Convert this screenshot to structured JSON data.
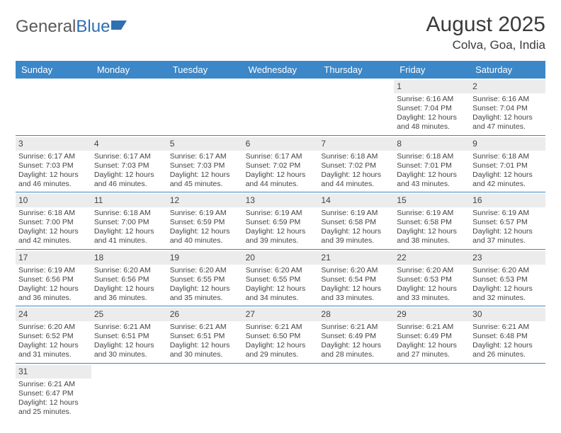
{
  "logo": {
    "part1": "General",
    "part2": "Blue"
  },
  "title": "August 2025",
  "location": "Colva, Goa, India",
  "colors": {
    "header_bg": "#3b87c8",
    "header_text": "#ffffff",
    "daynum_bg": "#ececec",
    "border": "#3b87c8",
    "text": "#444444",
    "logo_gray": "#5a5a5a",
    "logo_blue": "#2f6fb3",
    "flag_blue": "#2f6fb3"
  },
  "day_names": [
    "Sunday",
    "Monday",
    "Tuesday",
    "Wednesday",
    "Thursday",
    "Friday",
    "Saturday"
  ],
  "weeks": [
    [
      null,
      null,
      null,
      null,
      null,
      {
        "n": "1",
        "sr": "6:16 AM",
        "ss": "7:04 PM",
        "dl": "12 hours and 48 minutes."
      },
      {
        "n": "2",
        "sr": "6:16 AM",
        "ss": "7:04 PM",
        "dl": "12 hours and 47 minutes."
      }
    ],
    [
      {
        "n": "3",
        "sr": "6:17 AM",
        "ss": "7:03 PM",
        "dl": "12 hours and 46 minutes."
      },
      {
        "n": "4",
        "sr": "6:17 AM",
        "ss": "7:03 PM",
        "dl": "12 hours and 46 minutes."
      },
      {
        "n": "5",
        "sr": "6:17 AM",
        "ss": "7:03 PM",
        "dl": "12 hours and 45 minutes."
      },
      {
        "n": "6",
        "sr": "6:17 AM",
        "ss": "7:02 PM",
        "dl": "12 hours and 44 minutes."
      },
      {
        "n": "7",
        "sr": "6:18 AM",
        "ss": "7:02 PM",
        "dl": "12 hours and 44 minutes."
      },
      {
        "n": "8",
        "sr": "6:18 AM",
        "ss": "7:01 PM",
        "dl": "12 hours and 43 minutes."
      },
      {
        "n": "9",
        "sr": "6:18 AM",
        "ss": "7:01 PM",
        "dl": "12 hours and 42 minutes."
      }
    ],
    [
      {
        "n": "10",
        "sr": "6:18 AM",
        "ss": "7:00 PM",
        "dl": "12 hours and 42 minutes."
      },
      {
        "n": "11",
        "sr": "6:18 AM",
        "ss": "7:00 PM",
        "dl": "12 hours and 41 minutes."
      },
      {
        "n": "12",
        "sr": "6:19 AM",
        "ss": "6:59 PM",
        "dl": "12 hours and 40 minutes."
      },
      {
        "n": "13",
        "sr": "6:19 AM",
        "ss": "6:59 PM",
        "dl": "12 hours and 39 minutes."
      },
      {
        "n": "14",
        "sr": "6:19 AM",
        "ss": "6:58 PM",
        "dl": "12 hours and 39 minutes."
      },
      {
        "n": "15",
        "sr": "6:19 AM",
        "ss": "6:58 PM",
        "dl": "12 hours and 38 minutes."
      },
      {
        "n": "16",
        "sr": "6:19 AM",
        "ss": "6:57 PM",
        "dl": "12 hours and 37 minutes."
      }
    ],
    [
      {
        "n": "17",
        "sr": "6:19 AM",
        "ss": "6:56 PM",
        "dl": "12 hours and 36 minutes."
      },
      {
        "n": "18",
        "sr": "6:20 AM",
        "ss": "6:56 PM",
        "dl": "12 hours and 36 minutes."
      },
      {
        "n": "19",
        "sr": "6:20 AM",
        "ss": "6:55 PM",
        "dl": "12 hours and 35 minutes."
      },
      {
        "n": "20",
        "sr": "6:20 AM",
        "ss": "6:55 PM",
        "dl": "12 hours and 34 minutes."
      },
      {
        "n": "21",
        "sr": "6:20 AM",
        "ss": "6:54 PM",
        "dl": "12 hours and 33 minutes."
      },
      {
        "n": "22",
        "sr": "6:20 AM",
        "ss": "6:53 PM",
        "dl": "12 hours and 33 minutes."
      },
      {
        "n": "23",
        "sr": "6:20 AM",
        "ss": "6:53 PM",
        "dl": "12 hours and 32 minutes."
      }
    ],
    [
      {
        "n": "24",
        "sr": "6:20 AM",
        "ss": "6:52 PM",
        "dl": "12 hours and 31 minutes."
      },
      {
        "n": "25",
        "sr": "6:21 AM",
        "ss": "6:51 PM",
        "dl": "12 hours and 30 minutes."
      },
      {
        "n": "26",
        "sr": "6:21 AM",
        "ss": "6:51 PM",
        "dl": "12 hours and 30 minutes."
      },
      {
        "n": "27",
        "sr": "6:21 AM",
        "ss": "6:50 PM",
        "dl": "12 hours and 29 minutes."
      },
      {
        "n": "28",
        "sr": "6:21 AM",
        "ss": "6:49 PM",
        "dl": "12 hours and 28 minutes."
      },
      {
        "n": "29",
        "sr": "6:21 AM",
        "ss": "6:49 PM",
        "dl": "12 hours and 27 minutes."
      },
      {
        "n": "30",
        "sr": "6:21 AM",
        "ss": "6:48 PM",
        "dl": "12 hours and 26 minutes."
      }
    ],
    [
      {
        "n": "31",
        "sr": "6:21 AM",
        "ss": "6:47 PM",
        "dl": "12 hours and 25 minutes."
      },
      null,
      null,
      null,
      null,
      null,
      null
    ]
  ],
  "labels": {
    "sunrise": "Sunrise:",
    "sunset": "Sunset:",
    "daylight": "Daylight:"
  }
}
